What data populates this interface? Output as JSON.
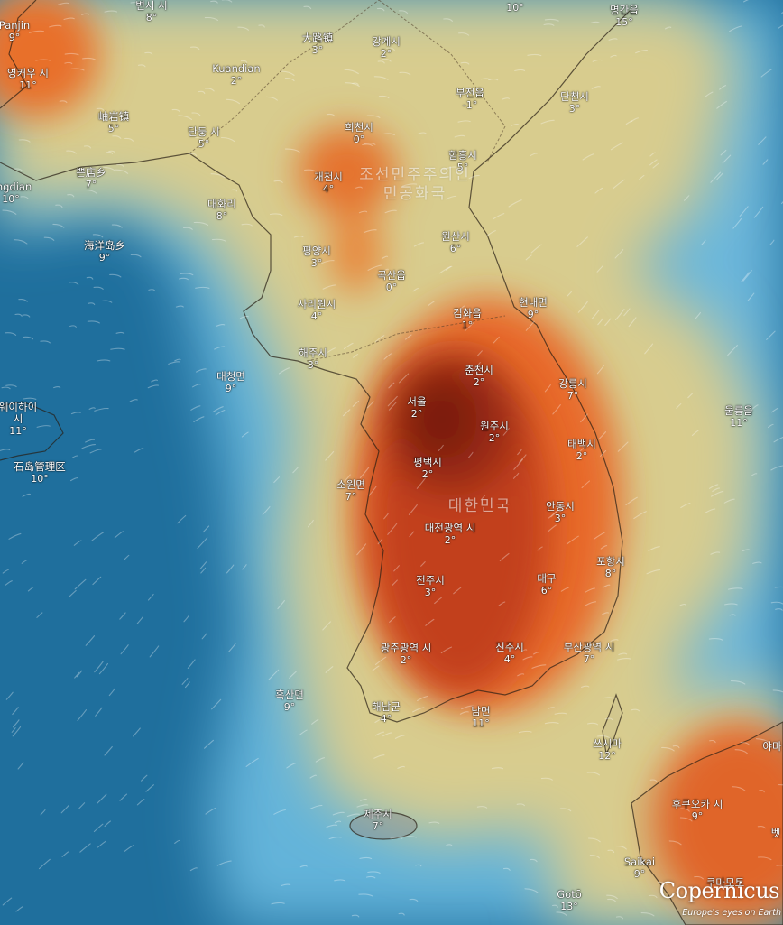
{
  "country_labels": [
    {
      "id": "north-korea",
      "lines": [
        "조선민주주의인",
        "민공화국"
      ]
    },
    {
      "id": "south-korea",
      "lines": [
        "대한민국"
      ]
    }
  ],
  "places": [
    {
      "name": "변시 시",
      "temp": "8°"
    },
    {
      "name": "Panjin",
      "temp": "9°"
    },
    {
      "name": "영커우 시",
      "temp": "11°"
    },
    {
      "name": "大路镇",
      "temp": "3°"
    },
    {
      "name": "강계시",
      "temp": "2°"
    },
    {
      "name": "Kuandian",
      "temp": "2°"
    },
    {
      "name": "岫岩镇",
      "temp": "5°"
    },
    {
      "name": "단둥 시",
      "temp": "5°"
    },
    {
      "name": "희천시",
      "temp": "0°"
    },
    {
      "name": "명간읍",
      "temp": "15°"
    },
    {
      "name": "부전읍",
      "temp": "-1°"
    },
    {
      "name": "단천시",
      "temp": "3°"
    },
    {
      "name": "함흥시",
      "temp": "5°"
    },
    {
      "name": "개천시",
      "temp": "4°"
    },
    {
      "name": "쁜店乡",
      "temp": "7°"
    },
    {
      "name": "angdian",
      "temp": "10°"
    },
    {
      "name": "대화리",
      "temp": "8°"
    },
    {
      "name": "海洋岛乡",
      "temp": "9°"
    },
    {
      "name": "평양시",
      "temp": "3°"
    },
    {
      "name": "원산시",
      "temp": "6°"
    },
    {
      "name": "곡산읍",
      "temp": "0°"
    },
    {
      "name": "사리원시",
      "temp": "4°"
    },
    {
      "name": "김화읍",
      "temp": "1°"
    },
    {
      "name": "현내면",
      "temp": "9°"
    },
    {
      "name": "해주시",
      "temp": "3°"
    },
    {
      "name": "대청면",
      "temp": "9°"
    },
    {
      "name": "춘천시",
      "temp": "2°"
    },
    {
      "name": "강릉시",
      "temp": "7°"
    },
    {
      "name": "서울",
      "temp": "2°"
    },
    {
      "name": "원주시",
      "temp": "2°"
    },
    {
      "name": "울릉읍",
      "temp": "11°"
    },
    {
      "name": "웨이하이 시",
      "temp": "11°"
    },
    {
      "name": "石岛管理区",
      "temp": "10°"
    },
    {
      "name": "태백시",
      "temp": "2°"
    },
    {
      "name": "평택시",
      "temp": "2°"
    },
    {
      "name": "소원면",
      "temp": "7°"
    },
    {
      "name": "안동시",
      "temp": "3°"
    },
    {
      "name": "대전광역 시",
      "temp": "2°"
    },
    {
      "name": "포항시",
      "temp": "8°"
    },
    {
      "name": "전주시",
      "temp": "3°"
    },
    {
      "name": "대구",
      "temp": "6°"
    },
    {
      "name": "광주광역 시",
      "temp": "2°"
    },
    {
      "name": "진주시",
      "temp": "4°"
    },
    {
      "name": "부산광역 시",
      "temp": "7°"
    },
    {
      "name": "흑산면",
      "temp": "9°"
    },
    {
      "name": "해남군",
      "temp": "4°"
    },
    {
      "name": "남면",
      "temp": "11°"
    },
    {
      "name": "쓰시마",
      "temp": "12°"
    },
    {
      "name": "제주시",
      "temp": "7°"
    },
    {
      "name": "후쿠오카 시",
      "temp": "9°"
    },
    {
      "name": "Saikai",
      "temp": "9°"
    },
    {
      "name": "Gotō",
      "temp": "13°"
    },
    {
      "name": "쿠마모토",
      "temp": ""
    },
    {
      "name": "야마",
      "temp": ""
    },
    {
      "name": "벳",
      "temp": ""
    }
  ],
  "top_partial_temp": "10°",
  "logo": {
    "brand": "Copernicus",
    "tagline": "Europe's eyes on Earth"
  },
  "colors": {
    "sea": "#1d6f9c",
    "cold_band": "#5fb2d8",
    "mild": "#d9c98a",
    "warm": "#e97a2f",
    "hot": "#b9361b",
    "core": "#7a1f12"
  }
}
